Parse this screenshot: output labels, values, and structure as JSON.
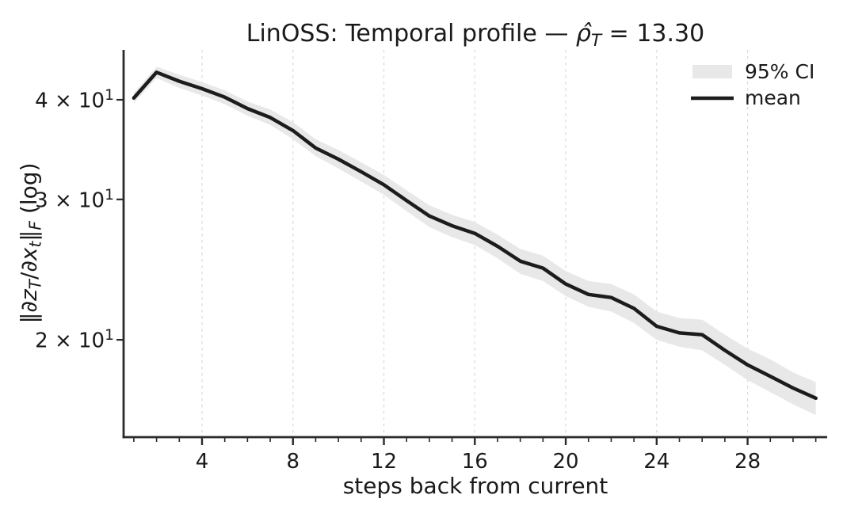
{
  "chart_data": {
    "type": "line",
    "title": "LinOSS: Temporal profile — ρ̂_T = 13.30",
    "title_parts": [
      {
        "t": "LinOSS: Temporal profile — ",
        "style": "plain"
      },
      {
        "t": "ρ̂",
        "style": "italic"
      },
      {
        "t": "T",
        "style": "italic-sub"
      },
      {
        "t": " = 13.30",
        "style": "plain"
      }
    ],
    "xlabel": "steps back from current",
    "ylabel": "‖∂z_T/∂x_t‖_F (log)",
    "ylabel_parts": [
      {
        "t": "‖",
        "style": "plain"
      },
      {
        "t": "∂z",
        "style": "italic"
      },
      {
        "t": "T",
        "style": "italic-sub"
      },
      {
        "t": "/",
        "style": "plain"
      },
      {
        "t": "∂x",
        "style": "italic"
      },
      {
        "t": "t",
        "style": "italic-sub"
      },
      {
        "t": "‖",
        "style": "plain"
      },
      {
        "t": "F",
        "style": "italic-sub"
      },
      {
        "t": " (log)",
        "style": "plain"
      }
    ],
    "yscale": "log",
    "x": [
      1,
      2,
      3,
      4,
      5,
      6,
      7,
      8,
      9,
      10,
      11,
      12,
      13,
      14,
      15,
      16,
      17,
      18,
      19,
      20,
      21,
      22,
      23,
      24,
      25,
      26,
      27,
      28,
      29,
      30,
      31
    ],
    "series": [
      {
        "name": "mean",
        "values": [
          40.2,
          43.3,
          42.2,
          41.3,
          40.3,
          39.0,
          38.0,
          36.6,
          34.8,
          33.7,
          32.5,
          31.3,
          29.9,
          28.6,
          27.8,
          27.2,
          26.2,
          25.1,
          24.6,
          23.5,
          22.8,
          22.6,
          21.9,
          20.8,
          20.4,
          20.3,
          19.4,
          18.6,
          18.0,
          17.4,
          16.9
        ]
      },
      {
        "name": "95% CI upper",
        "values": [
          40.8,
          44.0,
          43.0,
          42.1,
          41.1,
          39.8,
          38.9,
          37.5,
          35.7,
          34.6,
          33.4,
          32.2,
          30.8,
          29.5,
          28.7,
          28.1,
          27.1,
          26.0,
          25.5,
          24.4,
          23.7,
          23.5,
          22.8,
          21.7,
          21.3,
          21.2,
          20.3,
          19.5,
          18.9,
          18.2,
          17.7
        ]
      },
      {
        "name": "95% CI lower",
        "values": [
          39.6,
          42.6,
          41.4,
          40.5,
          39.5,
          38.2,
          37.2,
          35.7,
          34.0,
          32.8,
          31.6,
          30.4,
          29.0,
          27.7,
          26.9,
          26.3,
          25.3,
          24.2,
          23.7,
          22.7,
          22.0,
          21.7,
          21.0,
          20.0,
          19.6,
          19.4,
          18.6,
          17.8,
          17.2,
          16.6,
          16.1
        ]
      }
    ],
    "xlim": [
      0.55,
      31.5
    ],
    "ylim": [
      15.1,
      46.2
    ],
    "x_ticks_major": [
      4,
      8,
      12,
      16,
      20,
      24,
      28
    ],
    "x_ticks_minor_step": 1,
    "y_ticks": [
      {
        "value": 20,
        "base": "2 × 10",
        "exp": "1"
      },
      {
        "value": 30,
        "base": "3 × 10",
        "exp": "1"
      },
      {
        "value": 40,
        "base": "4 × 10",
        "exp": "1"
      }
    ],
    "grid": "vertical-dashed",
    "legend": {
      "position": "upper-right",
      "entries": [
        {
          "label": "95% CI",
          "type": "patch"
        },
        {
          "label": "mean",
          "type": "line"
        }
      ]
    },
    "colors": {
      "mean_line": "#1c1c1c",
      "ci_band": "#e8e8e8",
      "grid": "#d9d9d9",
      "spine": "#2a2a2a",
      "text": "#1a1a1a",
      "background": "#ffffff"
    }
  }
}
